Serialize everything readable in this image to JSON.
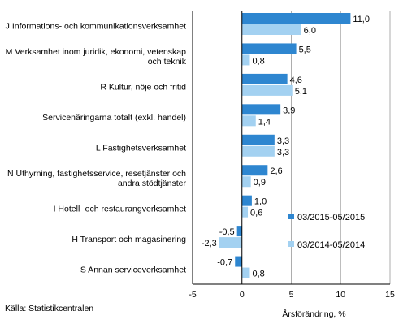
{
  "chart_data": {
    "type": "bar",
    "orientation": "horizontal",
    "categories": [
      [
        "J Informations- och kommunikationsverksamhet"
      ],
      [
        "M Verksamhet inom juridik, ekonomi, vetenskap",
        "och teknik"
      ],
      [
        "R Kultur, nöje och fritid"
      ],
      [
        "Servicenäringarna totalt (exkl. handel)"
      ],
      [
        "L Fastighetsverksamhet"
      ],
      [
        "N Uthyrning, fastighetsservice, resetjänster och",
        "andra stödtjänster"
      ],
      [
        "I Hotell- och restaurangverksamhet"
      ],
      [
        "H Transport och magasinering"
      ],
      [
        "S Annan serviceverksamhet"
      ]
    ],
    "series": [
      {
        "name": "03/2015-05/2015",
        "color": "#2E86D0",
        "values": [
          11.0,
          5.5,
          4.6,
          3.9,
          3.3,
          2.6,
          1.0,
          -0.5,
          -0.7
        ],
        "labels": [
          "11,0",
          "5,5",
          "4,6",
          "3,9",
          "3,3",
          "2,6",
          "1,0",
          "-0,5",
          "-0,7"
        ]
      },
      {
        "name": "03/2014-05/2014",
        "color": "#A3D1F1",
        "values": [
          6.0,
          0.8,
          5.1,
          1.4,
          3.3,
          0.9,
          0.6,
          -2.3,
          0.8
        ],
        "labels": [
          "6,0",
          "0,8",
          "5,1",
          "1,4",
          "3,3",
          "0,9",
          "0,6",
          "-2,3",
          "0,8"
        ]
      }
    ],
    "xlim": [
      -5,
      15
    ],
    "xticks": [
      -5,
      0,
      5,
      10,
      15
    ],
    "xticklabels": [
      "-5",
      "0",
      "5",
      "10",
      "15"
    ],
    "xlabel": "Årsförändring, %",
    "grid": "vertical",
    "legend_position": "lower-right inside plot"
  },
  "source": "Källa:  Statistikcentralen"
}
